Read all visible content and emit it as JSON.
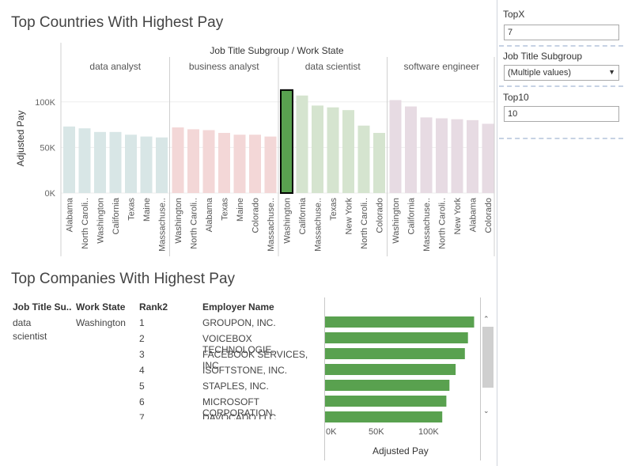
{
  "top_chart": {
    "title": "Top Countries With Highest Pay",
    "column_header": "Job Title Subgroup  /  Work State",
    "y_axis_label": "Adjusted Pay",
    "colors": {
      "data analyst": "#d8e6e6",
      "business analyst": "#f3d7d7",
      "data scientist": "#d5e4cf",
      "software engineer": "#e7dbe3",
      "highlight": "#59a14f"
    }
  },
  "chart_data": [
    {
      "type": "bar",
      "title": "Top Countries With Highest Pay",
      "xlabel": "Job Title Subgroup / Work State",
      "ylabel": "Adjusted Pay",
      "ylim": [
        0,
        125000
      ],
      "y_ticks": [
        "0K",
        "50K",
        "100K"
      ],
      "groups": [
        {
          "name": "data analyst",
          "states": [
            "Alabama",
            "North Caroli..",
            "Washington",
            "California",
            "Texas",
            "Maine",
            "Massachuse.."
          ],
          "values": [
            73000,
            71000,
            67000,
            67000,
            64000,
            62000,
            61000
          ]
        },
        {
          "name": "business analyst",
          "states": [
            "Washington",
            "North Caroli..",
            "Alabama",
            "Texas",
            "Maine",
            "Colorado",
            "Massachuse.."
          ],
          "values": [
            72000,
            70000,
            69000,
            66000,
            64000,
            64000,
            62000
          ]
        },
        {
          "name": "data scientist",
          "states": [
            "Washington",
            "California",
            "Massachuse..",
            "Texas",
            "New York",
            "North Caroli..",
            "Colorado"
          ],
          "values": [
            113000,
            107000,
            96000,
            94000,
            91000,
            74000,
            66000
          ],
          "highlight_index": 0
        },
        {
          "name": "software engineer",
          "states": [
            "Washington",
            "California",
            "Massachuse..",
            "North Caroli..",
            "New York",
            "Alabama",
            "Colorado"
          ],
          "values": [
            102000,
            95000,
            83000,
            82000,
            81000,
            80000,
            76000
          ]
        }
      ]
    },
    {
      "type": "bar",
      "orientation": "horizontal",
      "title": "Top Companies With Highest Pay",
      "xlabel": "Adjusted Pay",
      "x_ticks": [
        "0K",
        "50K",
        "100K"
      ],
      "xlim": [
        0,
        150000
      ],
      "categories": [
        "GROUPON, INC.",
        "VOICEBOX TECHNOLOGIE..",
        "FACEBOOK SERVICES, INC.",
        "ISOFTSTONE, INC.",
        "STAPLES, INC.",
        "MICROSOFT CORPORATION",
        "DAVOCADO LLC"
      ],
      "values": [
        145000,
        139000,
        136000,
        127000,
        121000,
        118000,
        114000
      ]
    }
  ],
  "companies": {
    "title": "Top Companies With Highest Pay",
    "headers": {
      "subgroup": "Job Title Su..",
      "state": "Work State",
      "rank": "Rank2",
      "employer": "Employer Name"
    },
    "subgroup_line1": "data",
    "subgroup_line2": "scientist",
    "state": "Washington",
    "rows": [
      {
        "rank": "1",
        "employer": "GROUPON, INC."
      },
      {
        "rank": "2",
        "employer": "VOICEBOX TECHNOLOGIE.."
      },
      {
        "rank": "3",
        "employer": "FACEBOOK SERVICES, INC."
      },
      {
        "rank": "4",
        "employer": "ISOFTSTONE, INC."
      },
      {
        "rank": "5",
        "employer": "STAPLES, INC."
      },
      {
        "rank": "6",
        "employer": "MICROSOFT CORPORATION"
      },
      {
        "rank": "7",
        "employer": "DAVOCADO LLC"
      }
    ],
    "bar_color": "#59a14f",
    "axis_label": "Adjusted Pay"
  },
  "panel": {
    "topx_label": "TopX",
    "topx_value": "7",
    "subgroup_label": "Job Title Subgroup",
    "subgroup_value": "(Multiple values)",
    "top10_label": "Top10",
    "top10_value": "10"
  }
}
